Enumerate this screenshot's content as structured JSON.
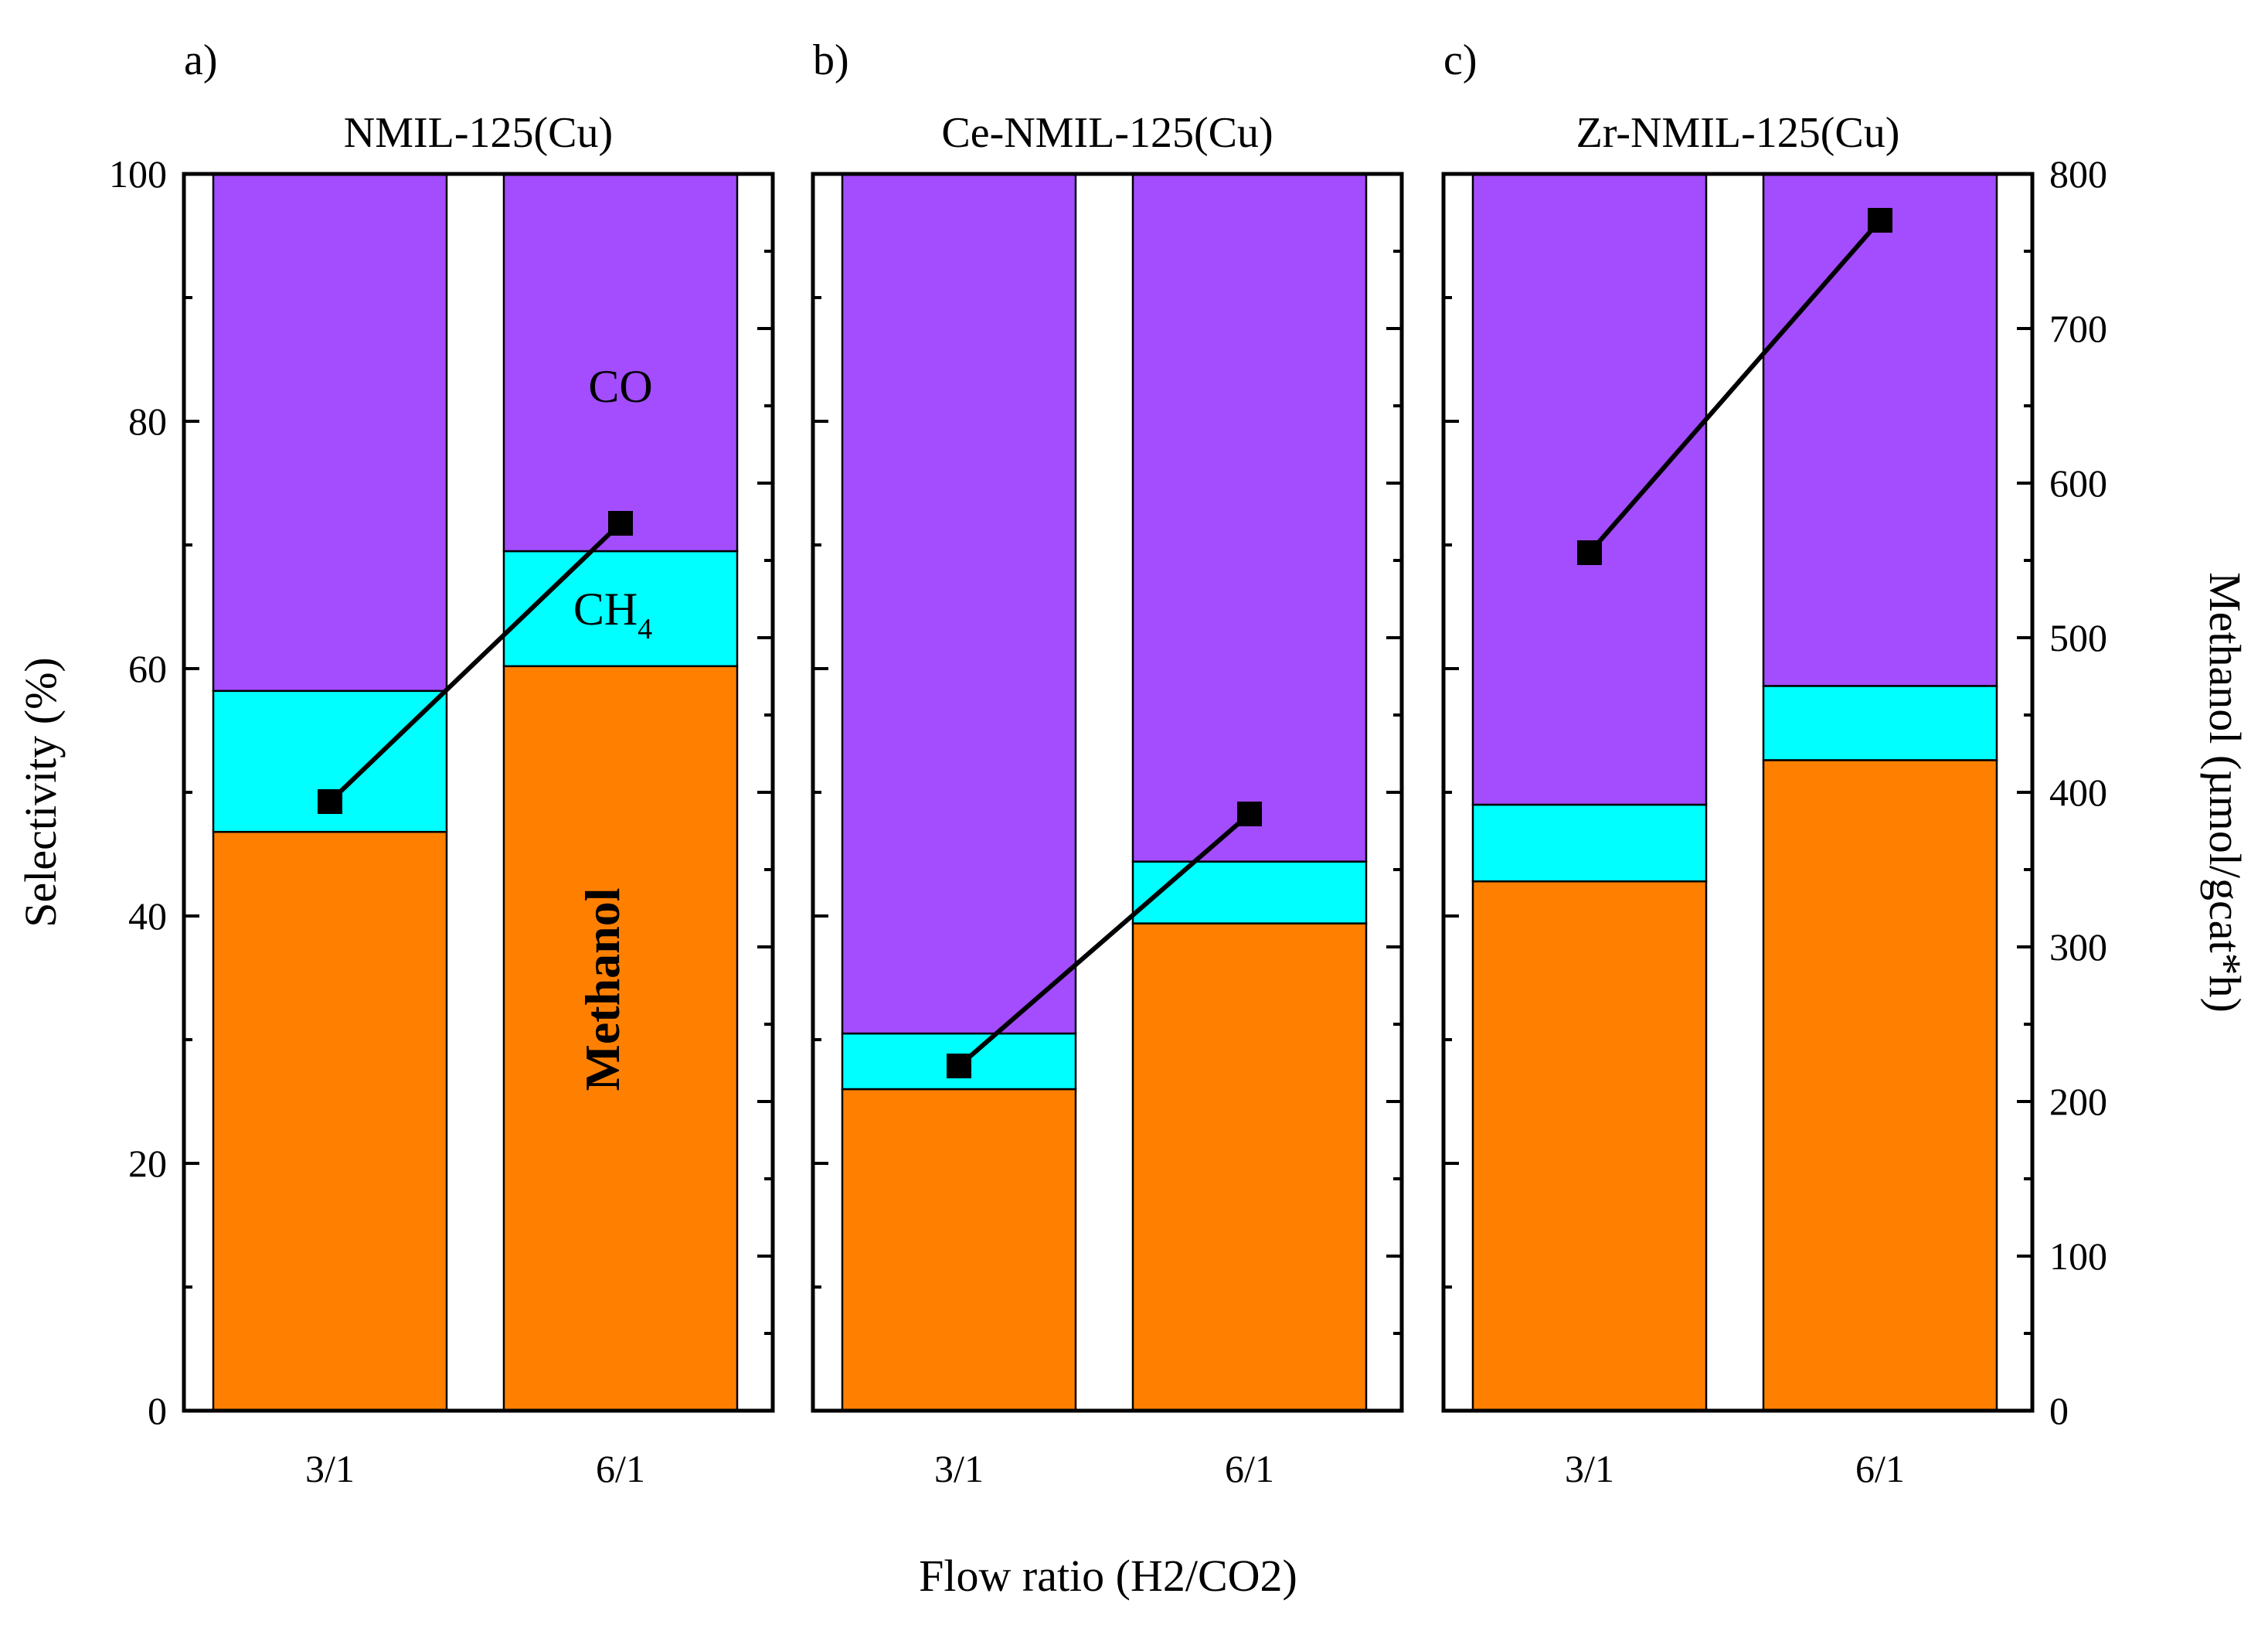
{
  "chart_data": {
    "type": "bar",
    "subtype": "stacked bar with line overlay",
    "categories": [
      "3/1",
      "6/1"
    ],
    "xlabel": "Flow ratio (H2/CO2)",
    "ylabel": "Selectivity (%)",
    "ylim": [
      0,
      100
    ],
    "yticks": [
      "0",
      "20",
      "40",
      "60",
      "80",
      "100"
    ],
    "y2label": "Methanol (µmol/gcat*h)",
    "y2lim": [
      0,
      800
    ],
    "y2ticks": [
      "0",
      "100",
      "200",
      "300",
      "400",
      "500",
      "600",
      "700",
      "800"
    ],
    "series_names": [
      "Methanol",
      "CH4",
      "CO"
    ],
    "line_series_name": "Methanol production rate",
    "colors": {
      "methanol": "#FF8000",
      "ch4": "#00FFFF",
      "co": "#A34DFF",
      "line": "#000000"
    },
    "annotations": {
      "co": "CO",
      "ch4": "CH",
      "ch4_sub": "4",
      "methanol": "Methanol"
    },
    "panels": [
      {
        "letter": "a)",
        "title": "NMIL-125(Cu)",
        "methanol": [
          46.8,
          60.2
        ],
        "ch4": [
          11.4,
          9.3
        ],
        "co": [
          41.8,
          30.5
        ],
        "rate": [
          394,
          574
        ]
      },
      {
        "letter": "b)",
        "title": "Ce-NMIL-125(Cu)",
        "methanol": [
          26.0,
          39.4
        ],
        "ch4": [
          4.5,
          5.0
        ],
        "co": [
          69.5,
          55.6
        ],
        "rate": [
          223,
          386
        ]
      },
      {
        "letter": "c)",
        "title": "Zr-NMIL-125(Cu)",
        "methanol": [
          42.8,
          52.6
        ],
        "ch4": [
          6.2,
          6.0
        ],
        "co": [
          51.0,
          41.4
        ],
        "rate": [
          555,
          770
        ]
      }
    ]
  }
}
